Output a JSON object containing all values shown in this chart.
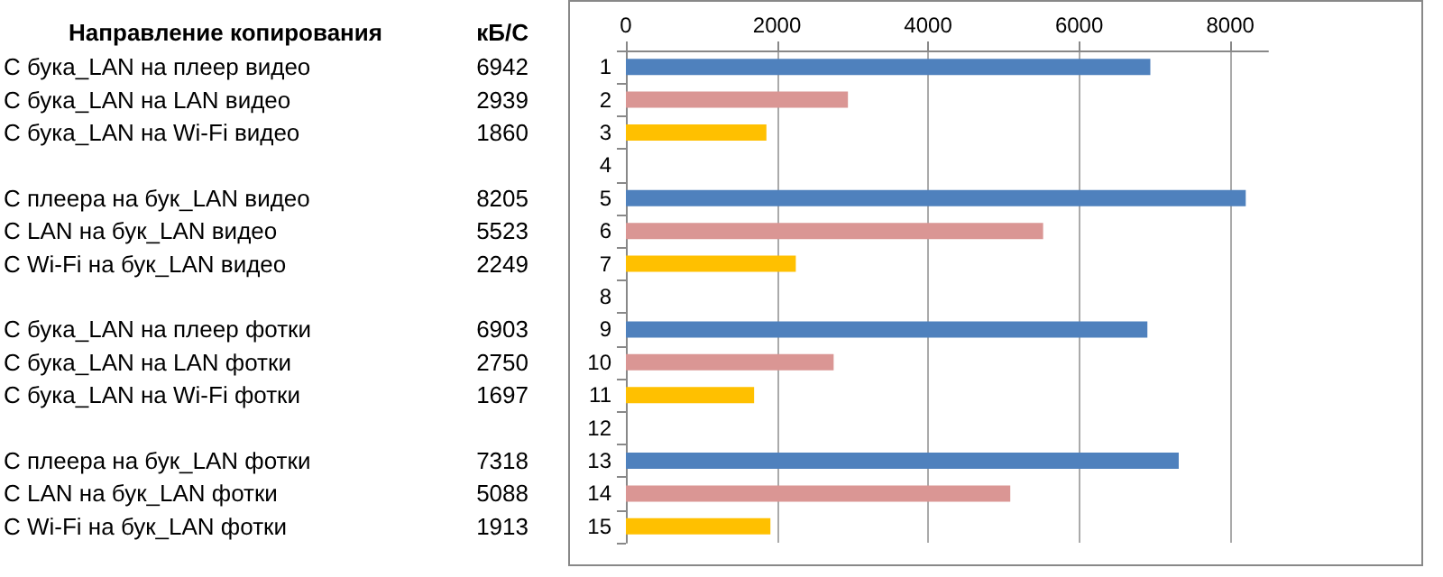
{
  "chart_data": {
    "type": "bar",
    "orientation": "horizontal",
    "categories": [
      "1",
      "2",
      "3",
      "4",
      "5",
      "6",
      "7",
      "8",
      "9",
      "10",
      "11",
      "12",
      "13",
      "14",
      "15"
    ],
    "values": [
      6942,
      2939,
      1860,
      null,
      8205,
      5523,
      2249,
      null,
      6903,
      2750,
      1697,
      null,
      7318,
      5088,
      1913
    ],
    "colors": [
      "#4f81bd",
      "#da9694",
      "#ffc000",
      null,
      "#4f81bd",
      "#da9694",
      "#ffc000",
      null,
      "#4f81bd",
      "#da9694",
      "#ffc000",
      null,
      "#4f81bd",
      "#da9694",
      "#ffc000"
    ],
    "xlim": [
      0,
      8500
    ],
    "xticks": [
      0,
      2000,
      4000,
      6000,
      8000
    ],
    "grid": "x",
    "data_labels": true,
    "annotations": [
      "Направление копирования",
      "кБ/С",
      "С бука_LAN на плеер видео",
      "С бука_LAN на LAN видео",
      "С бука_LAN на Wi-Fi видео",
      "С плеера на бук_LAN видео",
      "С LAN на бук_LAN видео",
      "С Wi-Fi на бук_LAN видео",
      "С бука_LAN на плеер фотки",
      "С бука_LAN на LAN фотки",
      "С бука_LAN на Wi-Fi фотки",
      "С плеера на бук_LAN фотки",
      "С LAN на бук_LAN фотки",
      "С Wi-Fi на бук_LAN фотки"
    ]
  }
}
